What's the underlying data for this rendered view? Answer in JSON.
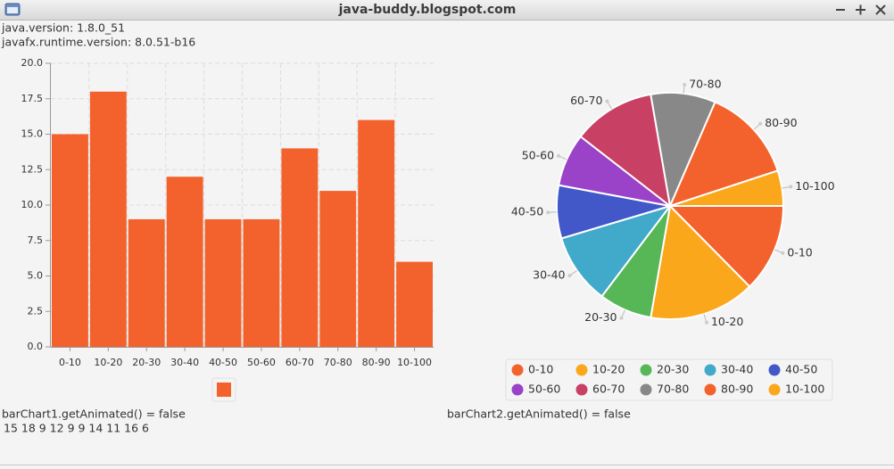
{
  "window": {
    "title": "java-buddy.blogspot.com"
  },
  "info": {
    "java_version": "java.version: 1.8.0_51",
    "javafx_version": "javafx.runtime.version: 8.0.51-b16"
  },
  "chart_data": [
    {
      "type": "bar",
      "categories": [
        "0-10",
        "10-20",
        "20-30",
        "30-40",
        "40-50",
        "50-60",
        "60-70",
        "70-80",
        "80-90",
        "10-100"
      ],
      "values": [
        15,
        18,
        9,
        12,
        9,
        9,
        14,
        11,
        16,
        6
      ],
      "color": "#f3622d",
      "ylim": [
        0,
        20
      ],
      "yticks": [
        {
          "value": 0,
          "label": "0.0"
        },
        2.5,
        {
          "value": 5,
          "label": "5.0"
        },
        7.5,
        {
          "value": 10,
          "label": "10.0"
        },
        12.5,
        {
          "value": 15,
          "label": "15.0"
        },
        17.5,
        {
          "value": 20,
          "label": "20.0"
        }
      ],
      "grid": true
    },
    {
      "type": "pie",
      "categories": [
        "0-10",
        "10-20",
        "20-30",
        "30-40",
        "40-50",
        "50-60",
        "60-70",
        "70-80",
        "80-90",
        "10-100"
      ],
      "values": [
        15,
        18,
        9,
        12,
        9,
        9,
        14,
        11,
        16,
        6
      ],
      "colors": [
        "#f3622d",
        "#fba71b",
        "#57b757",
        "#41a9c9",
        "#4258c9",
        "#9a42c8",
        "#c84164",
        "#888888",
        "#f3622d",
        "#fba71b"
      ],
      "legend": "bottom"
    }
  ],
  "footer": {
    "bar_animated": "barChart1.getAnimated() = false",
    "values_text": "15 18 9 12 9 9 14 11 16 6",
    "pie_animated": "barChart2.getAnimated() = false"
  }
}
